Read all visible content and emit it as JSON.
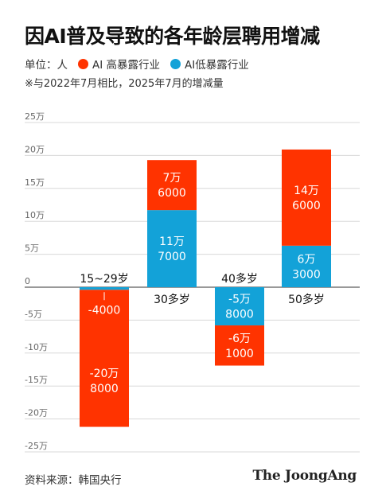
{
  "title": "因AI普及导致的各年龄层聘用增减",
  "legend": {
    "unit_label": "单位：人",
    "items": [
      {
        "label": "AI 高暴露行业",
        "color": "#ff3300"
      },
      {
        "label": "AI低暴露行业",
        "color": "#13a2d8"
      }
    ]
  },
  "note": "※与2022年7月相比，2025年7月的增减量",
  "chart_data": {
    "type": "bar",
    "stacked": true,
    "categories": [
      "15~29岁",
      "30多岁",
      "40多岁",
      "50多岁"
    ],
    "series": [
      {
        "name": "AI 高暴露行业",
        "color": "#ff3300",
        "values": [
          -208000,
          76000,
          -61000,
          146000
        ],
        "labels": [
          [
            "-20万",
            "8000"
          ],
          [
            "7万",
            "6000"
          ],
          [
            "-6万",
            "1000"
          ],
          [
            "14万",
            "6000"
          ]
        ]
      },
      {
        "name": "AI低暴露行业",
        "color": "#13a2d8",
        "values": [
          -4000,
          117000,
          -58000,
          63000
        ],
        "labels": [
          [
            "-4000"
          ],
          [
            "11万",
            "7000"
          ],
          [
            "-5万",
            "8000"
          ],
          [
            "6万",
            "3000"
          ]
        ]
      }
    ],
    "yticks": [
      "25万",
      "20万",
      "15万",
      "10万",
      "5万",
      "0",
      "-5万",
      "-10万",
      "-15万",
      "-20万",
      "-25万"
    ],
    "ylim": [
      -250000,
      250000
    ],
    "grid": true,
    "legend_position": "top-left"
  },
  "footer": {
    "source": "资料来源：韩国央行",
    "brand": "The JoongAng"
  }
}
